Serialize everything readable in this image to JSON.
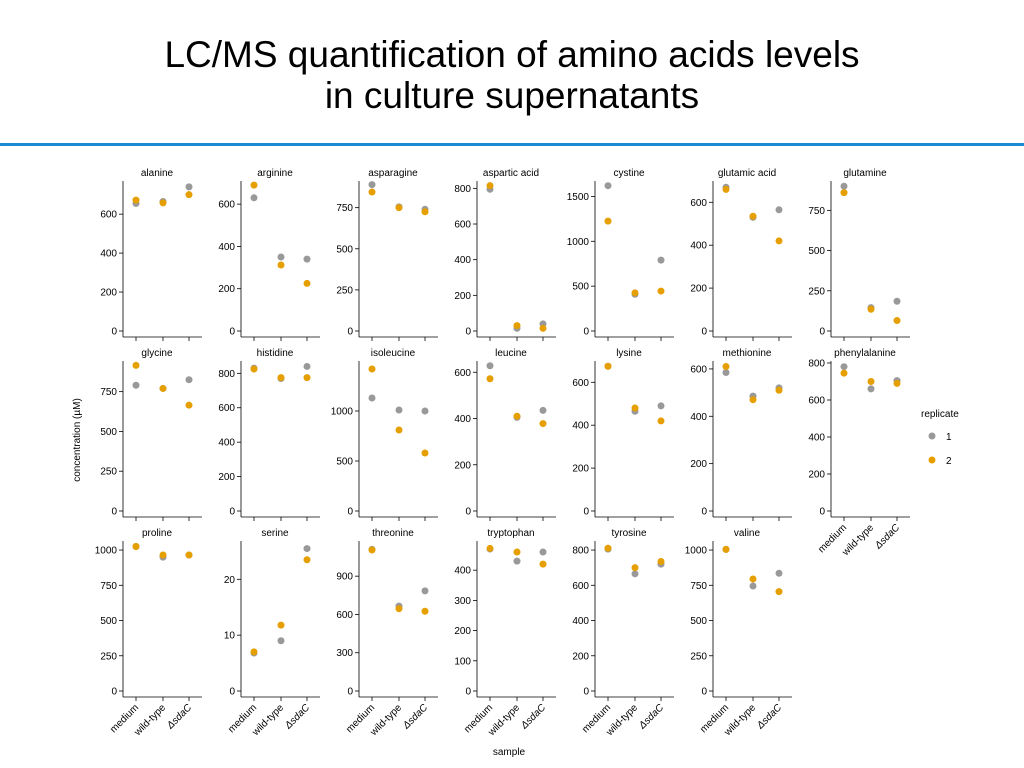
{
  "slide": {
    "title_line1": "LC/MS quantification of amino acids levels",
    "title_line2": "in culture supernatants"
  },
  "chart_data": {
    "type": "scatter",
    "categories": [
      "medium",
      "wild-type",
      "ΔsdaC"
    ],
    "xlabel": "sample",
    "ylabel": "concentration (µM)",
    "legend": {
      "title": "replicate",
      "position": "right"
    },
    "series_styles": [
      {
        "name": "1",
        "color": "#999999"
      },
      {
        "name": "2",
        "color": "#E69F00"
      }
    ],
    "grid": false,
    "panels": [
      {
        "name": "alanine",
        "ticks": [
          0,
          200,
          400,
          600
        ],
        "ylim": [
          0,
          760
        ],
        "rep1": [
          655,
          665,
          740
        ],
        "rep2": [
          672,
          658,
          700
        ]
      },
      {
        "name": "arginine",
        "ticks": [
          0,
          200,
          400,
          600
        ],
        "ylim": [
          0,
          700
        ],
        "rep1": [
          630,
          350,
          340
        ],
        "rep2": [
          690,
          312,
          225
        ]
      },
      {
        "name": "asparagine",
        "ticks": [
          0,
          250,
          500,
          750
        ],
        "ylim": [
          0,
          900
        ],
        "rep1": [
          890,
          755,
          740
        ],
        "rep2": [
          845,
          750,
          725
        ]
      },
      {
        "name": "aspartic acid",
        "ticks": [
          0,
          200,
          400,
          600,
          800
        ],
        "ylim": [
          0,
          830
        ],
        "rep1": [
          795,
          15,
          40
        ],
        "rep2": [
          815,
          30,
          15
        ]
      },
      {
        "name": "cystine",
        "ticks": [
          0,
          500,
          1000,
          1500
        ],
        "ylim": [
          0,
          1650
        ],
        "rep1": [
          1620,
          410,
          790
        ],
        "rep2": [
          1225,
          425,
          445
        ]
      },
      {
        "name": "glutamic acid",
        "ticks": [
          0,
          200,
          400,
          600
        ],
        "ylim": [
          0,
          690
        ],
        "rep1": [
          670,
          530,
          565
        ],
        "rep2": [
          660,
          535,
          420
        ]
      },
      {
        "name": "glutamine",
        "ticks": [
          0,
          250,
          500,
          750
        ],
        "ylim": [
          0,
          920
        ],
        "rep1": [
          900,
          145,
          185
        ],
        "rep2": [
          860,
          135,
          65
        ]
      },
      {
        "name": "glycine",
        "ticks": [
          0,
          250,
          500,
          750
        ],
        "ylim": [
          0,
          930
        ],
        "rep1": [
          790,
          770,
          825
        ],
        "rep2": [
          915,
          770,
          665
        ]
      },
      {
        "name": "histidine",
        "ticks": [
          0,
          200,
          400,
          600,
          800
        ],
        "ylim": [
          0,
          860
        ],
        "rep1": [
          830,
          770,
          840
        ],
        "rep2": [
          825,
          775,
          775
        ]
      },
      {
        "name": "isoleucine",
        "ticks": [
          0,
          500,
          1000
        ],
        "ylim": [
          0,
          1480
        ],
        "rep1": [
          1130,
          1010,
          1000
        ],
        "rep2": [
          1420,
          810,
          580
        ]
      },
      {
        "name": "leucine",
        "ticks": [
          0,
          200,
          400,
          600
        ],
        "ylim": [
          0,
          640
        ],
        "rep1": [
          628,
          405,
          435
        ],
        "rep2": [
          572,
          410,
          378
        ]
      },
      {
        "name": "lysine",
        "ticks": [
          0,
          200,
          400,
          600
        ],
        "ylim": [
          0,
          690
        ],
        "rep1": [
          675,
          465,
          490
        ],
        "rep2": [
          675,
          480,
          420
        ]
      },
      {
        "name": "methionine",
        "ticks": [
          0,
          200,
          400,
          600
        ],
        "ylim": [
          0,
          625
        ],
        "rep1": [
          585,
          485,
          520
        ],
        "rep2": [
          610,
          470,
          510
        ]
      },
      {
        "name": "phenylalanine",
        "ticks": [
          0,
          200,
          400,
          600,
          800
        ],
        "ylim": [
          0,
          800
        ],
        "rep1": [
          780,
          660,
          705
        ],
        "rep2": [
          745,
          700,
          690
        ]
      },
      {
        "name": "proline",
        "ticks": [
          0,
          250,
          500,
          750,
          1000
        ],
        "ylim": [
          0,
          1050
        ],
        "rep1": [
          1025,
          950,
          965
        ],
        "rep2": [
          1025,
          965,
          965
        ]
      },
      {
        "name": "serine",
        "ticks": [
          0,
          10,
          20
        ],
        "ylim": [
          0,
          26.5
        ],
        "rep1": [
          6.8,
          9,
          25.5
        ],
        "rep2": [
          7,
          11.8,
          23.5
        ]
      },
      {
        "name": "threonine",
        "ticks": [
          0,
          300,
          600,
          900
        ],
        "ylim": [
          0,
          1160
        ],
        "rep1": [
          1110,
          665,
          785
        ],
        "rep2": [
          1105,
          645,
          625
        ]
      },
      {
        "name": "tryptophan",
        "ticks": [
          0,
          100,
          200,
          300,
          400
        ],
        "ylim": [
          0,
          490
        ],
        "rep1": [
          470,
          430,
          460
        ],
        "rep2": [
          472,
          460,
          420
        ]
      },
      {
        "name": "tyrosine",
        "ticks": [
          0,
          200,
          400,
          600,
          800
        ],
        "ylim": [
          0,
          840
        ],
        "rep1": [
          805,
          665,
          720
        ],
        "rep2": [
          810,
          700,
          735
        ]
      },
      {
        "name": "valine",
        "ticks": [
          0,
          250,
          500,
          750,
          1000
        ],
        "ylim": [
          0,
          1050
        ],
        "rep1": [
          1005,
          745,
          835
        ],
        "rep2": [
          1005,
          795,
          705
        ]
      }
    ]
  }
}
